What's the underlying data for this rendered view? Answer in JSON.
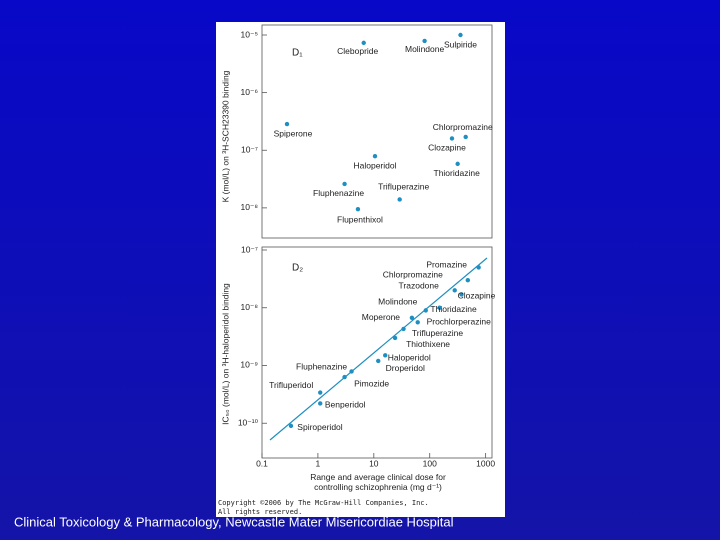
{
  "chart_data": [
    {
      "type": "scatter",
      "panel_label": "D₁",
      "ylabel": "K (mol/L) on ³H-SCH23390 binding",
      "log_x": true,
      "log_y": true,
      "color": "#1e8fc0",
      "xlim": [
        0.1,
        1300
      ],
      "ylim": [
        3e-09,
        1e-05
      ],
      "yticks": [
        {
          "value": 1e-05,
          "label": "10⁻⁵"
        },
        {
          "value": 1e-06,
          "label": "10⁻⁶"
        },
        {
          "value": 1e-07,
          "label": "10⁻⁷"
        },
        {
          "value": 1e-08,
          "label": "10⁻⁸"
        }
      ],
      "labels": [
        "Clebopride",
        "Molindone",
        "Sulpiride",
        "Spiperone",
        "Chlorpromazine",
        "Clozapine",
        "Thioridazine",
        "Haloperidol",
        "Fluphenazine",
        "Trifluperazine",
        "Flupenthixol"
      ],
      "x": [
        6.6,
        81,
        355,
        0.28,
        440,
        250,
        316,
        10.5,
        3,
        29,
        5.2
      ],
      "values": [
        7.3e-06,
        7.9e-06,
        1e-05,
        2.85e-07,
        1.7e-07,
        1.6e-07,
        5.8e-08,
        7.9e-08,
        2.6e-08,
        1.4e-08,
        9.5e-09
      ]
    },
    {
      "type": "scatter",
      "panel_label": "D₂",
      "ylabel": "IC₅₀ (mol/L) on ³H-haloperidol binding",
      "xlabel": "Range and average clinical dose for controlling schizophrenia (mg d⁻¹)",
      "log_x": true,
      "log_y": true,
      "color": "#1e8fc0",
      "xlim": [
        0.1,
        1300
      ],
      "ylim": [
        2.5e-11,
        1e-07
      ],
      "xticks": [
        0.1,
        1,
        10,
        100,
        1000
      ],
      "yticks": [
        {
          "value": 1e-07,
          "label": "10⁻⁷"
        },
        {
          "value": 1e-08,
          "label": "10⁻⁸"
        },
        {
          "value": 1e-09,
          "label": "10⁻⁹"
        },
        {
          "value": 1e-10,
          "label": "10⁻¹⁰"
        }
      ],
      "labels": [
        "Promazine",
        "Chlorpromazine",
        "Trazodone",
        "Clozapine",
        "Molindone",
        "Thioridazine",
        "Moperone",
        "Prochlorperazine",
        "Trifluperazine",
        "Thiothixene",
        "Haloperidol",
        "Droperidol",
        "Fluphenazine",
        "Pimozide",
        "Trifluperidol",
        "Benperidol",
        "Spiroperidol"
      ],
      "x": [
        750,
        480,
        280,
        370,
        85,
        150,
        48,
        61,
        34,
        24,
        16,
        12,
        4,
        3,
        1.1,
        1.1,
        0.33
      ],
      "values": [
        5e-08,
        3e-08,
        2e-08,
        1.7e-08,
        9e-09,
        1e-08,
        6.7e-09,
        5.6e-09,
        4.3e-09,
        3e-09,
        1.5e-09,
        1.2e-09,
        7.9e-10,
        6.3e-10,
        3.4e-10,
        2.2e-10,
        9e-11
      ]
    }
  ],
  "copyright": [
    "Copyright ©2006 by The McGraw-Hill Companies, Inc.",
    "All rights reserved."
  ],
  "footer": "Clinical Toxicology & Pharmacology, Newcastle Mater Misericordiae Hospital"
}
